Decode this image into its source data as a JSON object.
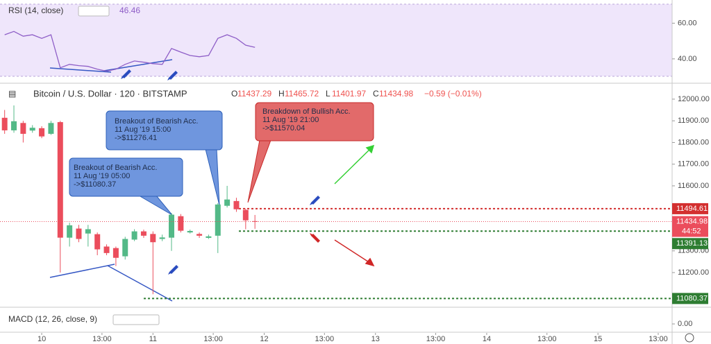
{
  "chart_data": [
    {
      "type": "line",
      "title": "RSI (14, close)",
      "last_value": 46.46,
      "color": "#8e5ec7",
      "x": [
        -8,
        -6,
        -4,
        -2,
        0,
        2,
        4,
        6,
        8,
        10,
        12,
        14,
        16,
        18,
        20,
        22,
        24,
        26,
        28,
        30,
        32,
        34,
        36,
        38,
        40,
        42,
        44,
        46
      ],
      "values": [
        53.5,
        55.4,
        52.7,
        53.5,
        51.5,
        53.5,
        35,
        36.9,
        36.2,
        35.8,
        34.2,
        33.1,
        34.2,
        36.9,
        38.8,
        38.1,
        37.3,
        36.9,
        45.8,
        43.8,
        41.9,
        41.2,
        41.9,
        51.5,
        53.5,
        51.5,
        47.7,
        46.46
      ],
      "xlim": [
        -9,
        136
      ],
      "ylim": [
        31,
        73
      ],
      "yticks": [
        {
          "value": 60,
          "label": "60.00"
        },
        {
          "value": 40,
          "label": "40.00"
        }
      ]
    },
    {
      "type": "candlestick",
      "title": "Bitcoin / U.S. Dollar · 120 · BITSTAMP",
      "ohlc": [
        {
          "key": "O",
          "value": 11437.29
        },
        {
          "key": "H",
          "value": 11465.72
        },
        {
          "key": "L",
          "value": 11401.97
        },
        {
          "key": "C",
          "value": 11434.98
        }
      ],
      "change": "−0.59 (−0.01%)",
      "up_color": "#53b987",
      "down_color": "#eb4d5c",
      "x": [
        -8,
        -6,
        -4,
        -2,
        0,
        2,
        4,
        6,
        8,
        10,
        12,
        14,
        16,
        18,
        20,
        22,
        24,
        26,
        28,
        30,
        32,
        34,
        36,
        38,
        40,
        42,
        44,
        46
      ],
      "open": [
        11914,
        11856,
        11890,
        11855,
        11866,
        11840,
        11894,
        11361,
        11403,
        11380,
        11377,
        11320,
        11313,
        11275,
        11352,
        11390,
        11378,
        11355,
        11361,
        11460,
        11385,
        11378,
        11360,
        11370,
        11508,
        11530,
        11489,
        11437.29
      ],
      "high": [
        11950,
        11971,
        11900,
        11880,
        11875,
        11900,
        11900,
        11430,
        11420,
        11420,
        11385,
        11330,
        11320,
        11365,
        11400,
        11398,
        11390,
        11375,
        11475,
        11470,
        11398,
        11385,
        11375,
        11520,
        11600,
        11545,
        11495,
        11465.72
      ],
      "low": [
        11840,
        11845,
        11800,
        11845,
        11820,
        11835,
        11200,
        11320,
        11340,
        11320,
        11280,
        11280,
        11230,
        11260,
        11345,
        11360,
        11100,
        11345,
        11300,
        11385,
        11380,
        11360,
        11355,
        11290,
        11500,
        11480,
        11400,
        11401.97
      ],
      "close": [
        11856,
        11898,
        11840,
        11868,
        11828,
        11890,
        11361,
        11418,
        11355,
        11400,
        11307,
        11290,
        11268,
        11355,
        11390,
        11370,
        11340,
        11362,
        11467,
        11393,
        11392,
        11370,
        11367,
        11514,
        11537,
        11492,
        11441,
        11434.98
      ],
      "countdown": "44:52",
      "price_lines": [
        {
          "value": 11494.61,
          "color": "#d32f2f"
        },
        {
          "value": 11391.13,
          "color": "#2e7d32"
        },
        {
          "value": 11080.37,
          "color": "#2e7d32"
        }
      ],
      "xlim": [
        -9,
        136
      ],
      "ylim": [
        11040,
        12067
      ],
      "yticks": [
        {
          "value": 12000,
          "label": "12000.00"
        },
        {
          "value": 11900,
          "label": "11900.00"
        },
        {
          "value": 11800,
          "label": "11800.00"
        },
        {
          "value": 11700,
          "label": "11700.00"
        },
        {
          "value": 11600,
          "label": "11600.00"
        },
        {
          "value": 11300,
          "label": "11300.00"
        },
        {
          "value": 11200,
          "label": "11200.00"
        }
      ],
      "xticks": [
        {
          "value": 0,
          "label": "10"
        },
        {
          "value": 13,
          "label": "13:00"
        },
        {
          "value": 24,
          "label": "11"
        },
        {
          "value": 37,
          "label": "13:00"
        },
        {
          "value": 48,
          "label": "12"
        },
        {
          "value": 61,
          "label": "13:00"
        },
        {
          "value": 72,
          "label": "13"
        },
        {
          "value": 85,
          "label": "13:00"
        },
        {
          "value": 96,
          "label": "14"
        },
        {
          "value": 109,
          "label": "13:00"
        },
        {
          "value": 120,
          "label": "15"
        },
        {
          "value": 133,
          "label": "13:00"
        }
      ],
      "annotations": [
        {
          "lines": [
            "Breakout of Bearish Acc.",
            "11 Aug '19 05:00",
            "->$11080.37"
          ]
        },
        {
          "lines": [
            "Breakout of Bearish Acc.",
            "11 Aug '19 15:00",
            "->$11276.41"
          ]
        },
        {
          "lines": [
            "Breakdown of Bullish Acc.",
            "11 Aug  '19 21:00",
            "->$11570.04"
          ]
        }
      ]
    },
    {
      "type": "macd",
      "title": "MACD (12, 26, close, 9)",
      "ylim": [
        -37,
        63
      ],
      "yticks": [
        {
          "value": 0,
          "label": "0.00"
        }
      ]
    }
  ]
}
